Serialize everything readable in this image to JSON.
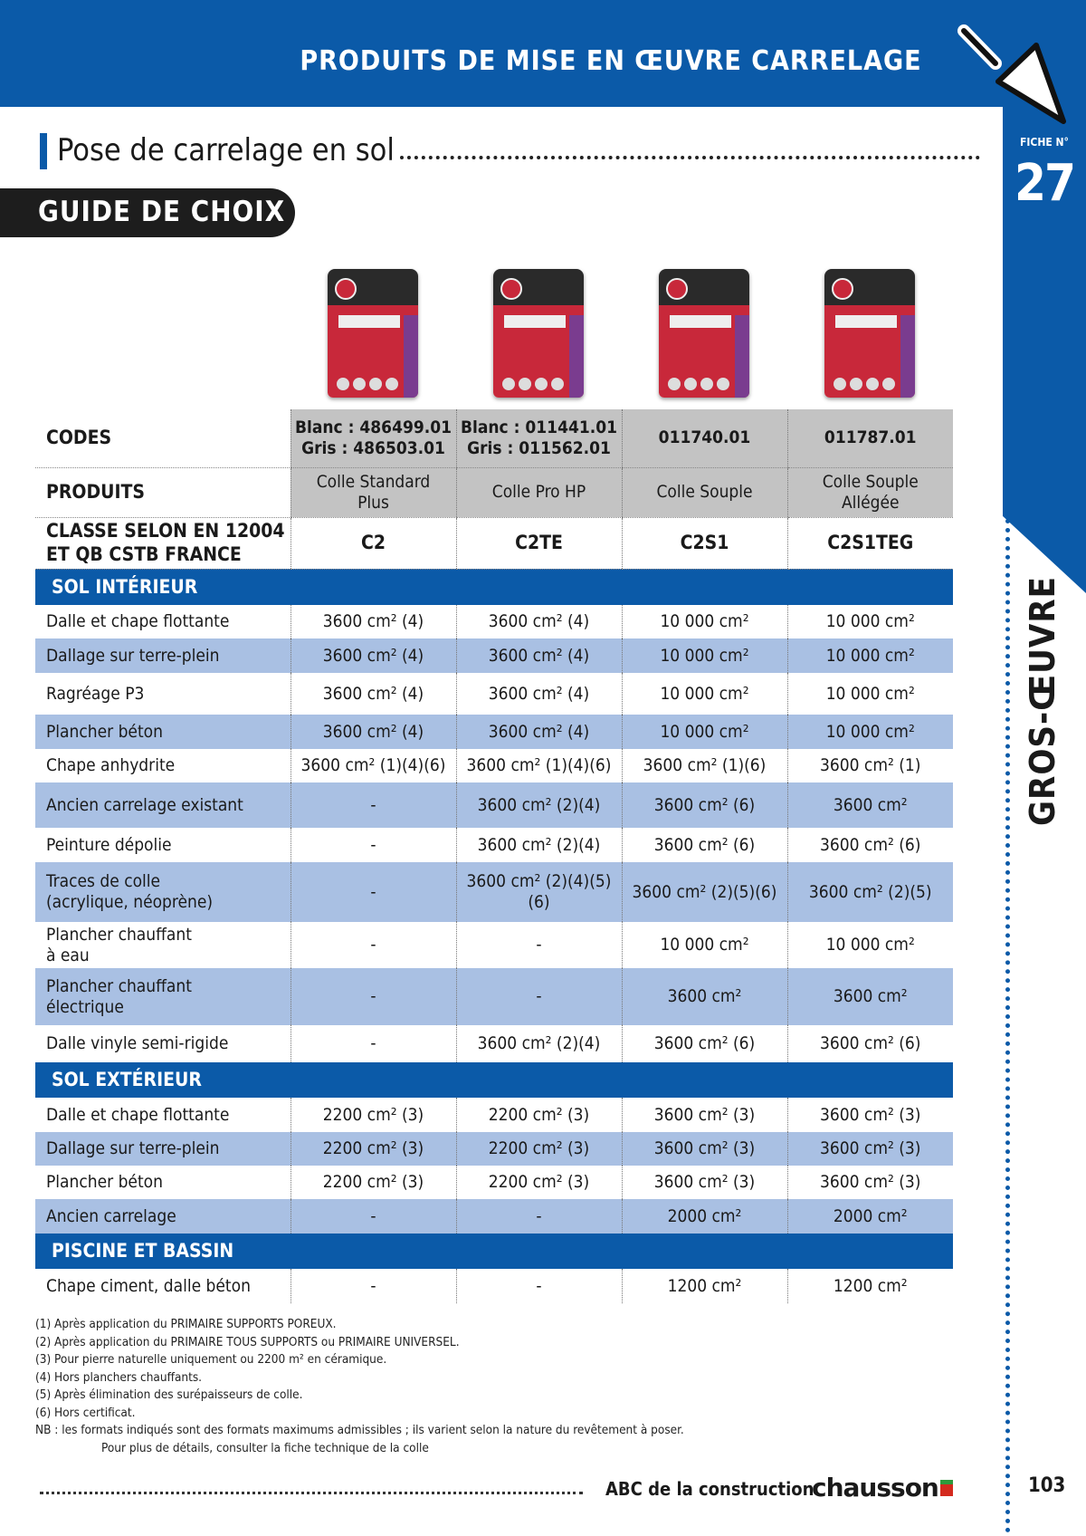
{
  "header": {
    "title": "PRODUITS DE MISE EN ŒUVRE CARRELAGE",
    "fiche_label": "FICHE N°",
    "fiche_number": "27",
    "brand_color": "#0b5aa8",
    "icon": "trowel-icon"
  },
  "section": {
    "title": "Pose de carrelage en sol",
    "badge": "GUIDE DE CHOIX"
  },
  "table": {
    "header_rows": [
      {
        "label": "CODES",
        "cells": [
          "Blanc : 486499.01\nGris : 486503.01",
          "Blanc : 011441.01\nGris : 011562.01",
          "011740.01",
          "011787.01"
        ]
      },
      {
        "label": "PRODUITS",
        "cells": [
          "Colle Standard\nPlus",
          "Colle Pro HP",
          "Colle Souple",
          "Colle Souple\nAllégée"
        ]
      },
      {
        "label": "CLASSE SELON EN 12004\nET QB CSTB FRANCE",
        "cells": [
          "C2",
          "C2TE",
          "C2S1",
          "C2S1TEG"
        ]
      }
    ],
    "sections": [
      {
        "title": "SOL INTÉRIEUR",
        "rows": [
          {
            "label": "Dalle et chape flottante",
            "cells": [
              "3600 cm² (4)",
              "3600 cm² (4)",
              "10 000 cm²",
              "10 000 cm²"
            ]
          },
          {
            "label": "Dallage sur terre-plein",
            "cells": [
              "3600 cm² (4)",
              "3600 cm² (4)",
              "10 000 cm²",
              "10 000 cm²"
            ]
          },
          {
            "label": "Ragréage P3",
            "cells": [
              "3600 cm² (4)",
              "3600 cm² (4)",
              "10 000 cm²",
              "10 000 cm²"
            ]
          },
          {
            "label": "Plancher béton",
            "cells": [
              "3600 cm² (4)",
              "3600 cm² (4)",
              "10 000 cm²",
              "10 000 cm²"
            ]
          },
          {
            "label": "Chape anhydrite",
            "cells": [
              "3600 cm² (1)(4)(6)",
              "3600 cm² (1)(4)(6)",
              "3600 cm² (1)(6)",
              "3600 cm² (1)"
            ]
          },
          {
            "label": "Ancien carrelage existant",
            "cells": [
              "-",
              "3600 cm² (2)(4)",
              "3600 cm² (6)",
              "3600 cm²"
            ]
          },
          {
            "label": "Peinture dépolie",
            "cells": [
              "-",
              "3600 cm² (2)(4)",
              "3600 cm² (6)",
              "3600 cm² (6)"
            ]
          },
          {
            "label": "Traces de colle\n(acrylique, néoprène)",
            "cells": [
              "-",
              "3600 cm² (2)(4)(5)(6)",
              "3600 cm² (2)(5)(6)",
              "3600 cm² (2)(5)"
            ]
          },
          {
            "label": "Plancher chauffant\nà eau",
            "cells": [
              "-",
              "-",
              "10 000 cm²",
              "10 000 cm²"
            ]
          },
          {
            "label": "Plancher chauffant\nélectrique",
            "cells": [
              "-",
              "-",
              "3600 cm²",
              "3600 cm²"
            ]
          },
          {
            "label": "Dalle vinyle semi-rigide",
            "cells": [
              "-",
              "3600 cm² (2)(4)",
              "3600 cm² (6)",
              "3600 cm² (6)"
            ]
          }
        ]
      },
      {
        "title": "SOL EXTÉRIEUR",
        "rows": [
          {
            "label": "Dalle et chape flottante",
            "cells": [
              "2200 cm² (3)",
              "2200 cm² (3)",
              "3600 cm² (3)",
              "3600 cm² (3)"
            ]
          },
          {
            "label": "Dallage sur terre-plein",
            "cells": [
              "2200 cm² (3)",
              "2200 cm² (3)",
              "3600 cm² (3)",
              "3600 cm² (3)"
            ]
          },
          {
            "label": "Plancher béton",
            "cells": [
              "2200 cm² (3)",
              "2200 cm² (3)",
              "3600 cm² (3)",
              "3600 cm² (3)"
            ]
          },
          {
            "label": "Ancien carrelage",
            "cells": [
              "-",
              "-",
              "2000 cm²",
              "2000 cm²"
            ]
          }
        ]
      },
      {
        "title": "PISCINE ET BASSIN",
        "rows": [
          {
            "label": "Chape ciment, dalle béton",
            "cells": [
              "-",
              "-",
              "1200 cm²",
              "1200 cm²"
            ]
          }
        ]
      }
    ]
  },
  "notes": [
    "(1) Après application du PRIMAIRE SUPPORTS POREUX.",
    "(2) Après application du PRIMAIRE TOUS SUPPORTS ou PRIMAIRE UNIVERSEL.",
    "(3) Pour pierre naturelle uniquement ou 2200 m² en céramique.",
    "(4) Hors planchers chauffants.",
    "(5) Après élimination des surépaisseurs de colle.",
    "(6) Hors certificat.",
    "NB : les formats indiqués sont des formats maximums admissibles ; ils varient selon la nature du revêtement à poser.",
    "Pour plus de détails, consulter la fiche technique de la colle"
  ],
  "footer": {
    "publication": "ABC de la construction",
    "brand": "chausson",
    "side_label": "GROS-ŒUVRE",
    "page_number": "103"
  }
}
